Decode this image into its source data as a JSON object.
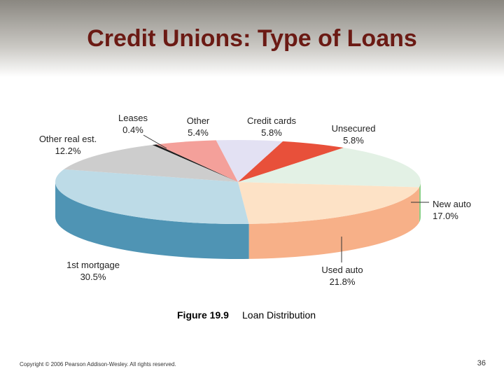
{
  "chart_data": {
    "type": "pie",
    "title": "Credit Unions: Type of Loans",
    "caption_number": "Figure 19.9",
    "caption": "Loan Distribution",
    "categories": [
      "Leases",
      "Other",
      "Credit cards",
      "Unsecured",
      "New auto",
      "Used auto",
      "1st mortgage",
      "Other real est."
    ],
    "values": [
      0.4,
      5.4,
      5.8,
      5.8,
      17.0,
      21.8,
      30.5,
      12.2
    ],
    "value_labels": [
      "0.4%",
      "5.4%",
      "5.8%",
      "5.8%",
      "17.0%",
      "21.8%",
      "30.5%",
      "12.2%"
    ],
    "colors": [
      "#1e1e1e",
      "#f4a09a",
      "#e3e1f3",
      "#e8503a",
      "#e3f1e5",
      "#fde2c6",
      "#bddbe7",
      "#cdcdcd"
    ],
    "side_colors": [
      "#111111",
      "#d9766e",
      "#b6b3d0",
      "#b8341f",
      "#8ccf88",
      "#f7b088",
      "#4f94b4",
      "#9d9d9d"
    ]
  },
  "slide": {
    "footer": "Copyright © 2006 Pearson Addison-Wesley. All rights reserved.",
    "page_number": "36"
  }
}
